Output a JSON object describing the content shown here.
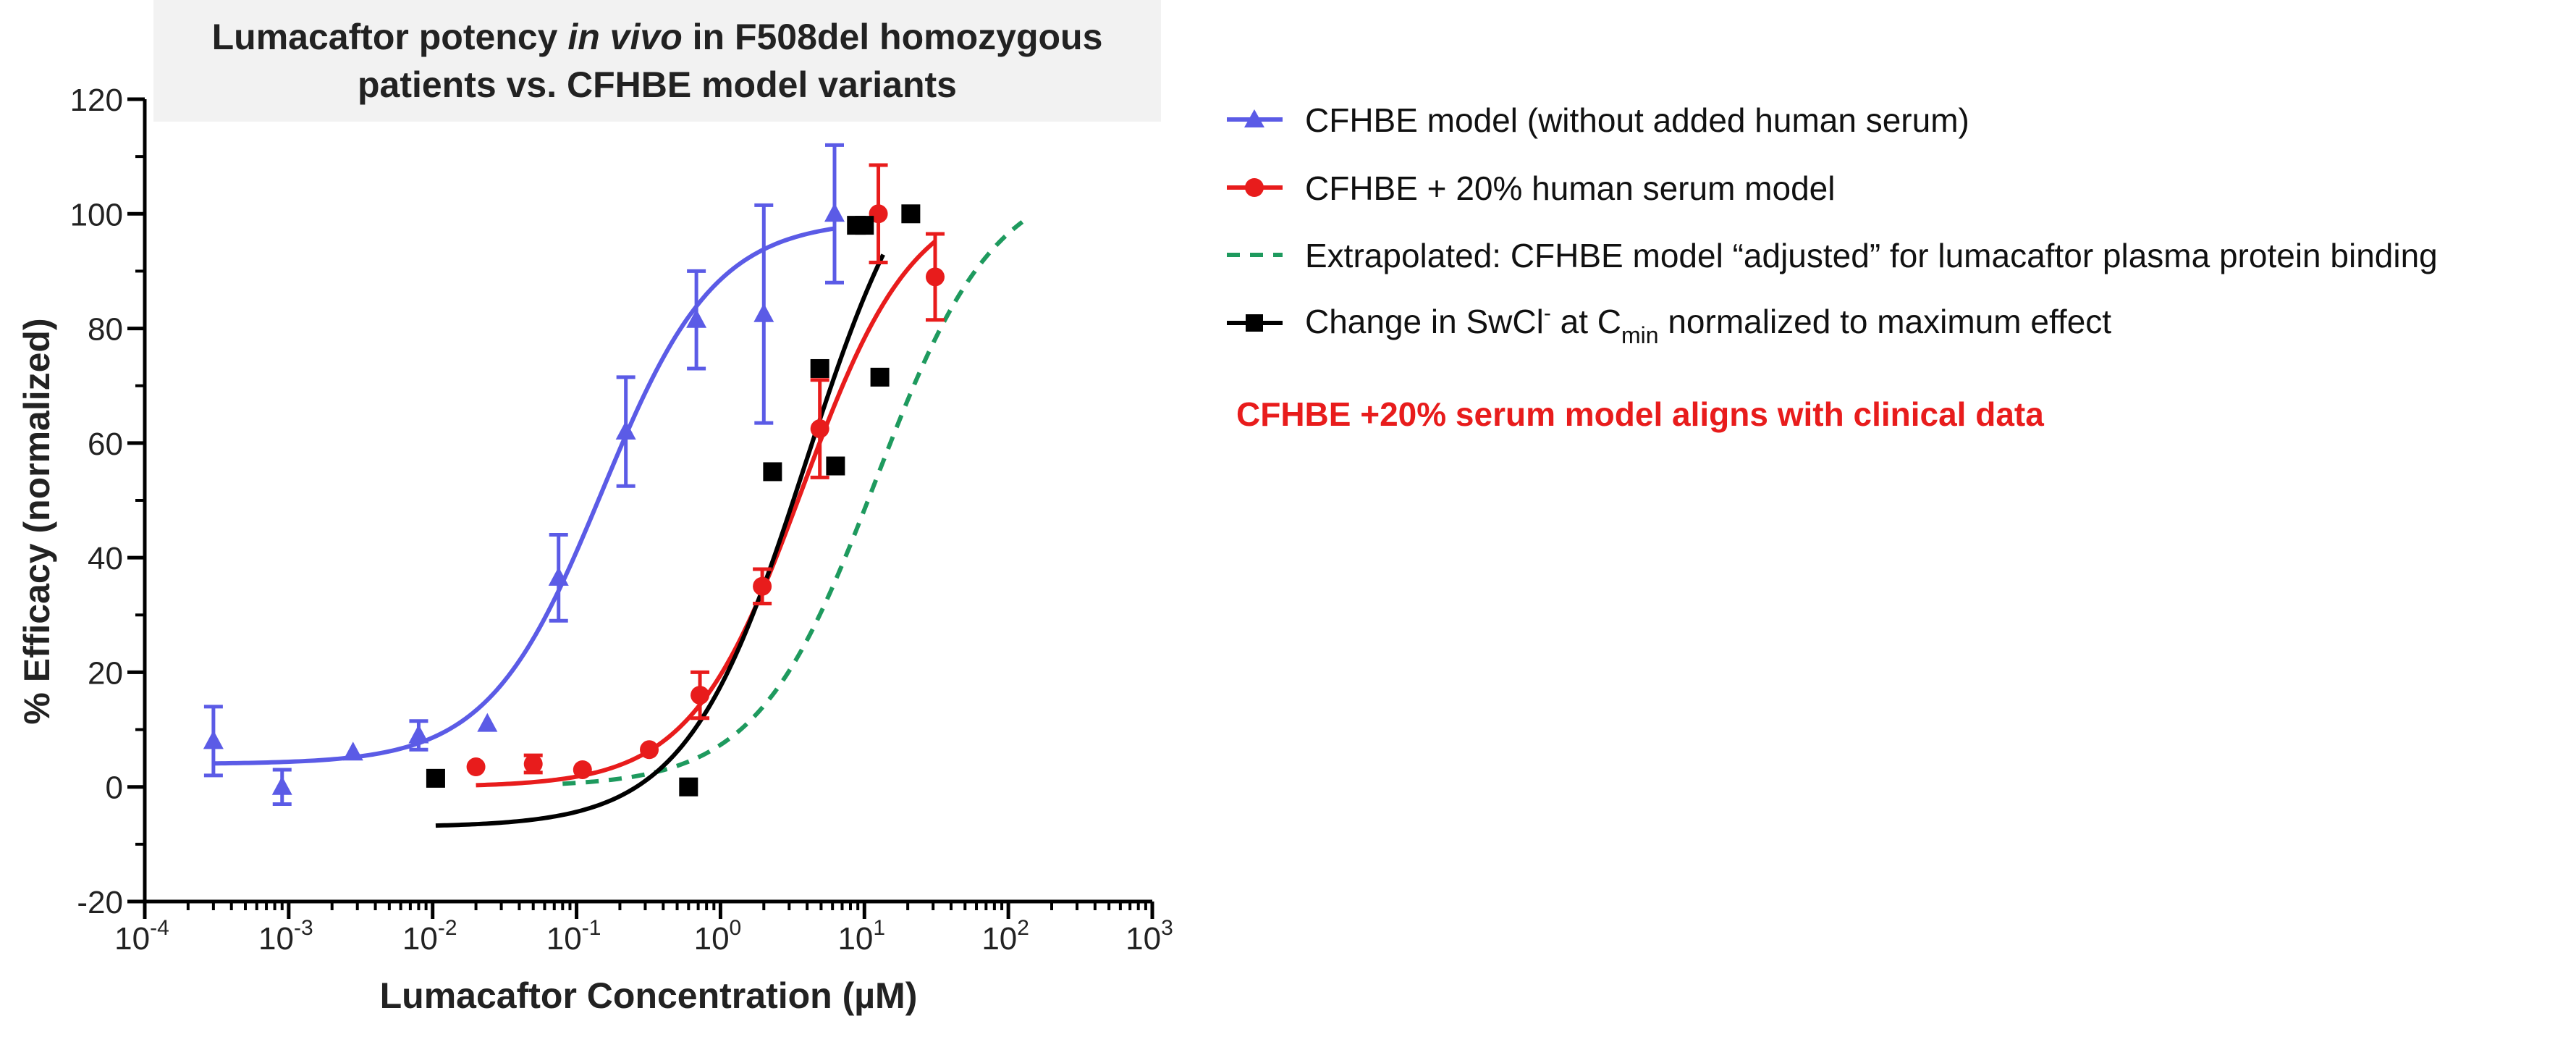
{
  "chart_data": {
    "type": "scatter",
    "title_parts": [
      "Lumacaftor potency ",
      "in vivo",
      " in F508del homozygous"
    ],
    "title_line2": "patients vs. CFHBE model variants",
    "xlabel": "Lumacaftor Concentration (µM)",
    "ylabel": "% Efficacy (normalized)",
    "x_scale": "log10",
    "xlim": [
      0.0001,
      1000
    ],
    "ylim": [
      -20,
      120
    ],
    "x_ticks": [
      {
        "value": 0.0001,
        "base": "10",
        "exp": "-4"
      },
      {
        "value": 0.001,
        "base": "10",
        "exp": "-3"
      },
      {
        "value": 0.01,
        "base": "10",
        "exp": "-2"
      },
      {
        "value": 0.1,
        "base": "10",
        "exp": "-1"
      },
      {
        "value": 1,
        "base": "10",
        "exp": "0"
      },
      {
        "value": 10,
        "base": "10",
        "exp": "1"
      },
      {
        "value": 100,
        "base": "10",
        "exp": "2"
      },
      {
        "value": 1000,
        "base": "10",
        "exp": "3"
      }
    ],
    "y_ticks": [
      -20,
      0,
      20,
      40,
      60,
      80,
      100,
      120
    ],
    "series": [
      {
        "id": "cfhbe",
        "legend": "CFHBE model (without added human serum)",
        "color": "#5b5be6",
        "marker": "triangle",
        "points": [
          {
            "x": 0.0003,
            "y": 8,
            "err": 6
          },
          {
            "x": 0.0009,
            "y": 0,
            "err": 3
          },
          {
            "x": 0.0028,
            "y": 6,
            "err": 0
          },
          {
            "x": 0.008,
            "y": 9,
            "err": 2.5
          },
          {
            "x": 0.024,
            "y": 11,
            "err": 0
          },
          {
            "x": 0.075,
            "y": 36.5,
            "err": 7.5
          },
          {
            "x": 0.22,
            "y": 62,
            "err": 9.5
          },
          {
            "x": 0.68,
            "y": 81.5,
            "err": 8.5
          },
          {
            "x": 2.0,
            "y": 82.5,
            "err": 19
          },
          {
            "x": 6.2,
            "y": 100,
            "err": 12
          }
        ],
        "fit": {
          "bottom": 4,
          "top": 99,
          "ec50": 0.15,
          "hill": 1.1,
          "xmin": 0.0003,
          "xmax": 6.2,
          "dashed": false
        }
      },
      {
        "id": "serum",
        "legend": "CFHBE + 20% human serum model",
        "color": "#e81c1c",
        "marker": "circle",
        "points": [
          {
            "x": 0.02,
            "y": 3.5,
            "err": 0
          },
          {
            "x": 0.05,
            "y": 4,
            "err": 1.5
          },
          {
            "x": 0.11,
            "y": 3,
            "err": 0
          },
          {
            "x": 0.32,
            "y": 6.5,
            "err": 0
          },
          {
            "x": 0.72,
            "y": 16,
            "err": 4
          },
          {
            "x": 1.95,
            "y": 35,
            "err": 3
          },
          {
            "x": 4.9,
            "y": 62.5,
            "err": 8.5
          },
          {
            "x": 12.5,
            "y": 100,
            "err": 8.5
          },
          {
            "x": 31,
            "y": 89,
            "err": 7.5
          }
        ],
        "fit": {
          "bottom": 0,
          "top": 104,
          "ec50": 3.7,
          "hill": 1.12,
          "xmin": 0.02,
          "xmax": 31,
          "dashed": false
        }
      },
      {
        "id": "extrap",
        "legend_parts": [
          "Extrapolated: CFHBE model “adjusted” for lumacaftor plasma protein binding"
        ],
        "legend": "Extrapolated: CFHBE model “adjusted” for lumacaftor plasma protein binding",
        "color": "#1e9a5e",
        "marker": "none",
        "points": [],
        "fit": {
          "bottom": 0,
          "top": 107,
          "ec50": 12,
          "hill": 1.05,
          "xmin": 0.08,
          "xmax": 125,
          "dashed": true
        }
      },
      {
        "id": "clinical",
        "legend_pre": "Change in SwCl",
        "legend_sup": "-",
        "legend_mid": " at C",
        "legend_sub": "min",
        "legend_post": " normalized to maximum effect",
        "color": "#000000",
        "marker": "square",
        "points": [
          {
            "x": 0.0105,
            "y": 1.5
          },
          {
            "x": 0.6,
            "y": 0
          },
          {
            "x": 2.3,
            "y": 55
          },
          {
            "x": 4.9,
            "y": 73
          },
          {
            "x": 6.3,
            "y": 56
          },
          {
            "x": 8.8,
            "y": 98
          },
          {
            "x": 10,
            "y": 98
          },
          {
            "x": 12.8,
            "y": 71.5
          },
          {
            "x": 21,
            "y": 100
          }
        ],
        "fit": {
          "bottom": -7,
          "top": 120,
          "ec50": 3.9,
          "hill": 1.05,
          "xmin": 0.0105,
          "xmax": 13.5,
          "dashed": false
        }
      }
    ],
    "annotation": "CFHBE +20% serum model aligns with clinical data",
    "annotation_color": "#e81c1c",
    "title_bg": "#f2f2f2",
    "axis_color": "#000000",
    "text_color": "#222222"
  }
}
